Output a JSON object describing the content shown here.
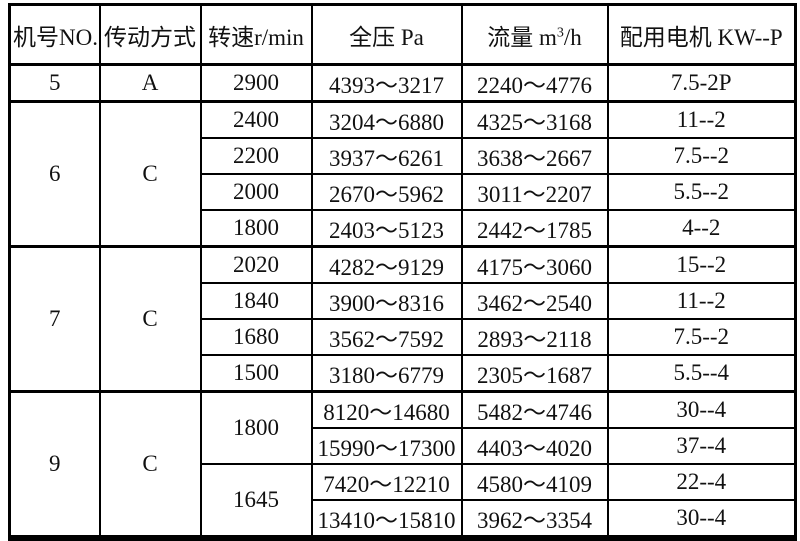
{
  "table": {
    "headers": {
      "machine_no": "机号NO.",
      "drive_type": "传动方式",
      "speed": "转速r/min",
      "pressure": "全压 Pa",
      "flow_prefix": "流量 m",
      "flow_sup": "3",
      "flow_suffix": "/h",
      "motor": "配用电机 KW--P"
    },
    "groups": [
      {
        "machine": "5",
        "drive": "A",
        "rows": [
          {
            "speed": "2900",
            "pressure": "4393～3217",
            "flow": "2240～4776",
            "motor": "7.5-2P"
          }
        ]
      },
      {
        "machine": "6",
        "drive": "C",
        "rows": [
          {
            "speed": "2400",
            "pressure": "3204～6880",
            "flow": "4325～3168",
            "motor": "11--2"
          },
          {
            "speed": "2200",
            "pressure": "3937～6261",
            "flow": "3638～2667",
            "motor": "7.5--2"
          },
          {
            "speed": "2000",
            "pressure": "2670～5962",
            "flow": "3011～2207",
            "motor": "5.5--2"
          },
          {
            "speed": "1800",
            "pressure": "2403～5123",
            "flow": "2442～1785",
            "motor": "4--2"
          }
        ]
      },
      {
        "machine": "7",
        "drive": "C",
        "rows": [
          {
            "speed": "2020",
            "pressure": "4282～9129",
            "flow": "4175～3060",
            "motor": "15--2"
          },
          {
            "speed": "1840",
            "pressure": "3900～8316",
            "flow": "3462～2540",
            "motor": "11--2"
          },
          {
            "speed": "1680",
            "pressure": "3562～7592",
            "flow": "2893～2118",
            "motor": "7.5--2"
          },
          {
            "speed": "1500",
            "pressure": "3180～6779",
            "flow": "2305～1687",
            "motor": "5.5--4"
          }
        ]
      },
      {
        "machine": "9",
        "drive": "C",
        "rows": [
          {
            "speed": "1800",
            "pressure": "8120～14680",
            "flow": "5482～4746",
            "motor": "30--4"
          },
          {
            "pressure": "15990～17300",
            "flow": "4403～4020",
            "motor": "37--4"
          },
          {
            "speed": "1645",
            "pressure": "7420～12210",
            "flow": "4580～4109",
            "motor": "22--4"
          },
          {
            "pressure": "13410～15810",
            "flow": "3962～3354",
            "motor": "30--4"
          }
        ]
      }
    ]
  }
}
